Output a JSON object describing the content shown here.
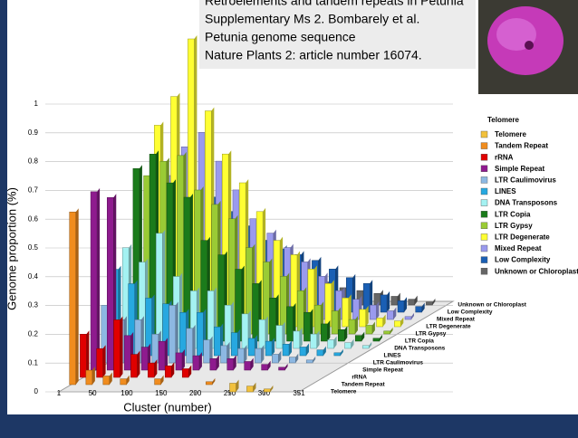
{
  "caption": {
    "lines": [
      "Retroelements and tandem repeats in Petunia",
      "Supplementary Ms 2. Bombarely et al.",
      "Petunia genome sequence",
      "Nature Plants 2: article number 16074."
    ]
  },
  "chart_data": {
    "type": "bar3d",
    "y_label": "Genome proportion (%)",
    "x_label": "Cluster (number)",
    "legend_title": "Telomere",
    "x": [
      1,
      25,
      50,
      75,
      100,
      125,
      150,
      175,
      200,
      225,
      250,
      275,
      300,
      325,
      351
    ],
    "xlim": [
      1,
      351
    ],
    "xticks": [
      1,
      50,
      100,
      150,
      200,
      250,
      300,
      351
    ],
    "ylim": [
      0,
      1
    ],
    "yticks": [
      0,
      0.1,
      0.2,
      0.3,
      0.4,
      0.5,
      0.6,
      0.7,
      0.8,
      0.9,
      1
    ],
    "grid": true,
    "series": [
      {
        "name": "Telomere",
        "color": "#f2c13c",
        "values": [
          null,
          null,
          null,
          null,
          null,
          null,
          null,
          null,
          null,
          null,
          0.03,
          0.02,
          0.01,
          null,
          null
        ]
      },
      {
        "name": "Tandem Repeat",
        "color": "#f08c1e",
        "values": [
          0.6,
          0.05,
          0.03,
          0.02,
          null,
          0.02,
          null,
          null,
          0.01,
          null,
          null,
          null,
          null,
          null,
          null
        ]
      },
      {
        "name": "rRNA",
        "color": "#e00000",
        "values": [
          0.15,
          0.1,
          0.2,
          0.08,
          0.05,
          0.04,
          0.03,
          null,
          null,
          null,
          null,
          null,
          null,
          null,
          null
        ]
      },
      {
        "name": "Simple Repeat",
        "color": "#8e1b8e",
        "values": [
          0.62,
          0.6,
          0.12,
          0.08,
          0.1,
          0.06,
          0.05,
          0.04,
          0.04,
          0.03,
          0.02,
          0.01,
          null,
          null,
          null
        ]
      },
      {
        "name": "LTR Caulimovirus",
        "color": "#8db8e2",
        "values": [
          0.2,
          0.15,
          0.15,
          0.1,
          0.2,
          0.12,
          0.08,
          0.06,
          0.05,
          0.05,
          0.03,
          0.02,
          0.01,
          null,
          null
        ]
      },
      {
        "name": "LINES",
        "color": "#27a8e0",
        "values": [
          0.3,
          0.25,
          0.2,
          0.18,
          0.15,
          0.15,
          0.1,
          0.08,
          0.06,
          0.05,
          0.04,
          0.03,
          0.02,
          0.01,
          null
        ]
      },
      {
        "name": "DNA Transposons",
        "color": "#a4f2f2",
        "values": [
          0.35,
          0.3,
          0.4,
          0.25,
          0.2,
          0.2,
          0.15,
          0.12,
          0.1,
          0.08,
          0.06,
          0.05,
          0.03,
          0.02,
          0.01
        ]
      },
      {
        "name": "LTR Copia",
        "color": "#1b7b1b",
        "values": [
          0.6,
          0.65,
          0.55,
          0.5,
          0.35,
          0.3,
          0.25,
          0.2,
          0.15,
          0.12,
          0.1,
          0.06,
          0.04,
          0.02,
          0.01
        ]
      },
      {
        "name": "LTR Gypsy",
        "color": "#9acb35",
        "values": [
          0.55,
          0.6,
          0.62,
          0.5,
          0.45,
          0.4,
          0.3,
          0.25,
          0.2,
          0.15,
          0.1,
          0.08,
          0.05,
          0.03,
          0.01
        ]
      },
      {
        "name": "LTR Degenerate",
        "color": "#ffff33",
        "values": [
          0.7,
          0.8,
          1.0,
          0.75,
          0.6,
          0.5,
          0.4,
          0.3,
          0.25,
          0.2,
          0.15,
          0.1,
          0.06,
          0.03,
          0.02
        ]
      },
      {
        "name": "Mixed Repeat",
        "color": "#9a9aee",
        "values": [
          0.5,
          0.6,
          0.65,
          0.55,
          0.45,
          0.35,
          0.3,
          0.25,
          0.2,
          0.15,
          0.1,
          0.07,
          0.05,
          0.03,
          0.01
        ]
      },
      {
        "name": "Low Complexity",
        "color": "#1a5fb4",
        "values": [
          0.3,
          0.35,
          0.4,
          0.35,
          0.3,
          0.25,
          0.22,
          0.2,
          0.18,
          0.15,
          0.12,
          0.1,
          0.06,
          0.04,
          0.02
        ]
      },
      {
        "name": "Unknown or Chloroplast",
        "color": "#666666",
        "values": [
          0.2,
          0.2,
          0.25,
          0.2,
          0.18,
          0.15,
          0.12,
          0.1,
          0.08,
          0.06,
          0.05,
          0.04,
          0.03,
          0.02,
          0.01
        ]
      }
    ]
  }
}
